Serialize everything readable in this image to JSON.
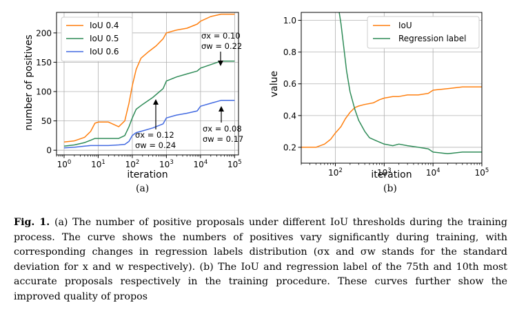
{
  "chart_data": [
    {
      "type": "line",
      "panel_label": "(a)",
      "xscale": "log",
      "xlabel": "iteration",
      "ylabel": "number of positives",
      "xlim": [
        0.6,
        130000
      ],
      "ylim": [
        -8,
        235
      ],
      "xticks": [
        {
          "value": 1,
          "label": "10^0"
        },
        {
          "value": 10,
          "label": "10^1"
        },
        {
          "value": 100,
          "label": "10^2"
        },
        {
          "value": 1000,
          "label": "10^3"
        },
        {
          "value": 10000,
          "label": "10^4"
        },
        {
          "value": 100000,
          "label": "10^5"
        }
      ],
      "yticks": [
        0,
        50,
        100,
        150,
        200
      ],
      "legend_position": "upper-left",
      "series": [
        {
          "name": "IoU 0.4",
          "color": "#ff7f0e",
          "x": [
            1,
            2,
            4,
            6,
            8,
            10,
            20,
            40,
            60,
            80,
            100,
            130,
            180,
            300,
            500,
            800,
            1000,
            2000,
            4000,
            8000,
            10000,
            20000,
            40000,
            100000
          ],
          "y": [
            14,
            16,
            22,
            32,
            46,
            48,
            48,
            40,
            50,
            80,
            110,
            138,
            157,
            168,
            178,
            190,
            200,
            205,
            208,
            215,
            220,
            228,
            232,
            232
          ]
        },
        {
          "name": "IoU 0.5",
          "color": "#2e8b57",
          "x": [
            1,
            2,
            4,
            6,
            8,
            10,
            20,
            40,
            60,
            80,
            100,
            130,
            200,
            400,
            800,
            1000,
            2000,
            4000,
            8000,
            10000,
            20000,
            40000,
            100000
          ],
          "y": [
            7,
            9,
            13,
            17,
            20,
            20,
            20,
            20,
            25,
            40,
            55,
            70,
            78,
            90,
            105,
            118,
            125,
            130,
            135,
            140,
            146,
            152,
            152
          ]
        },
        {
          "name": "IoU 0.6",
          "color": "#4169e1",
          "x": [
            1,
            2,
            4,
            6,
            8,
            10,
            20,
            40,
            60,
            80,
            100,
            130,
            200,
            400,
            800,
            1000,
            2000,
            4000,
            8000,
            10000,
            20000,
            40000,
            100000
          ],
          "y": [
            4,
            5,
            7,
            8,
            8,
            8,
            8,
            9,
            10,
            15,
            25,
            30,
            33,
            38,
            45,
            55,
            60,
            63,
            67,
            75,
            80,
            85,
            85
          ]
        }
      ],
      "annotations": [
        {
          "line1": "σx = 0.10",
          "line2": "σw = 0.22",
          "arrow_to": {
            "x": 40000,
            "y": 152
          }
        },
        {
          "line1": "σx = 0.12",
          "line2": "σw = 0.24",
          "arrow_to": {
            "x": 1000,
            "y": 88
          }
        },
        {
          "line1": "σx = 0.08",
          "line2": "σw = 0.17",
          "arrow_to": {
            "x": 40000,
            "y": 40
          }
        }
      ]
    },
    {
      "type": "line",
      "panel_label": "(b)",
      "xscale": "log",
      "xlabel": "iteration",
      "ylabel": "value",
      "xlim": [
        20,
        100000
      ],
      "ylim": [
        0.1,
        1.05
      ],
      "xticks": [
        {
          "value": 100,
          "label": "10^2"
        },
        {
          "value": 1000,
          "label": "10^3"
        },
        {
          "value": 10000,
          "label": "10^4"
        },
        {
          "value": 100000,
          "label": "10^5"
        }
      ],
      "yticks": [
        0.2,
        0.4,
        0.6,
        0.8,
        1.0
      ],
      "legend_position": "upper-right",
      "series": [
        {
          "name": "IoU",
          "color": "#ff7f0e",
          "x": [
            20,
            40,
            60,
            80,
            100,
            130,
            160,
            200,
            250,
            300,
            400,
            600,
            800,
            1000,
            1500,
            2000,
            3000,
            5000,
            8000,
            10000,
            20000,
            40000,
            100000
          ],
          "y": [
            0.2,
            0.2,
            0.22,
            0.25,
            0.29,
            0.33,
            0.38,
            0.42,
            0.45,
            0.46,
            0.47,
            0.48,
            0.5,
            0.51,
            0.52,
            0.52,
            0.53,
            0.53,
            0.54,
            0.56,
            0.57,
            0.58,
            0.58
          ]
        },
        {
          "name": "Regression label",
          "color": "#2e8b57",
          "x": [
            120,
            130,
            150,
            170,
            200,
            250,
            300,
            400,
            500,
            700,
            1000,
            1500,
            2000,
            3000,
            5000,
            8000,
            10000,
            20000,
            40000,
            100000
          ],
          "y": [
            1.05,
            0.98,
            0.82,
            0.68,
            0.55,
            0.44,
            0.37,
            0.3,
            0.26,
            0.24,
            0.22,
            0.21,
            0.22,
            0.21,
            0.2,
            0.19,
            0.17,
            0.16,
            0.17,
            0.17
          ]
        }
      ]
    }
  ],
  "caption": {
    "label": "Fig. 1.",
    "text": "(a) The number of positive proposals under different IoU thresholds during the training process. The curve shows the numbers of positives vary significantly during training, with corresponding changes in regression labels distribution (σx and σw stands for the standard deviation for x and w respectively). (b) The IoU and regression label of the 75th and 10th most accurate proposals respectively in the training procedure. These curves further show the improved quality of propos"
  }
}
